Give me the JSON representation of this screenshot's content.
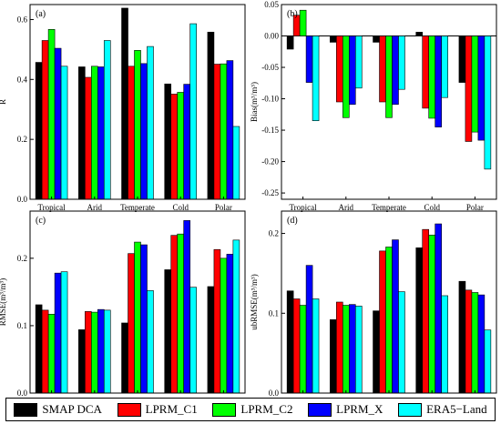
{
  "chart_data": [
    {
      "type": "bar",
      "panel_label": "(a)",
      "ylabel": "R",
      "ylim": [
        0,
        0.65
      ],
      "yticks": [
        0.0,
        0.2,
        0.4,
        0.6
      ],
      "ytick_labels": [
        "0.0",
        "0.2",
        "0.4",
        "0.6"
      ],
      "categories": [
        "Tropical",
        "Arid",
        "Temperate",
        "Cold",
        "Polar"
      ],
      "series": [
        {
          "name": "SMAP DCA",
          "values": [
            0.457,
            0.442,
            0.638,
            0.385,
            0.558
          ]
        },
        {
          "name": "LPRM_C1",
          "values": [
            0.53,
            0.407,
            0.444,
            0.351,
            0.451
          ]
        },
        {
          "name": "LPRM_C2",
          "values": [
            0.567,
            0.444,
            0.497,
            0.357,
            0.452
          ]
        },
        {
          "name": "LPRM_X",
          "values": [
            0.504,
            0.442,
            0.453,
            0.384,
            0.463
          ]
        },
        {
          "name": "ERA5-Land",
          "values": [
            0.444,
            0.53,
            0.51,
            0.586,
            0.243
          ]
        }
      ]
    },
    {
      "type": "bar",
      "panel_label": "(b)",
      "ylabel": "Bias(m³/m³)",
      "ylim": [
        -0.26,
        0.05
      ],
      "yticks": [
        0.05,
        0.0,
        -0.05,
        -0.1,
        -0.15,
        -0.2,
        -0.25
      ],
      "ytick_labels": [
        "0.05",
        "0.00",
        "-0.05",
        "-0.10",
        "-0.15",
        "-0.20",
        "-0.25"
      ],
      "categories": [
        "Tropical",
        "Arid",
        "Temperate",
        "Cold",
        "Polar"
      ],
      "series": [
        {
          "name": "SMAP DCA",
          "values": [
            -0.021,
            -0.01,
            -0.01,
            0.006,
            -0.074
          ]
        },
        {
          "name": "LPRM_C1",
          "values": [
            0.033,
            -0.105,
            -0.105,
            -0.115,
            -0.168
          ]
        },
        {
          "name": "LPRM_C2",
          "values": [
            0.041,
            -0.13,
            -0.13,
            -0.131,
            -0.153
          ]
        },
        {
          "name": "LPRM_X",
          "values": [
            -0.074,
            -0.109,
            -0.109,
            -0.145,
            -0.166
          ]
        },
        {
          "name": "ERA5-Land",
          "values": [
            -0.135,
            -0.083,
            -0.085,
            -0.098,
            -0.212
          ]
        }
      ]
    },
    {
      "type": "bar",
      "panel_label": "(c)",
      "ylabel": "RMSE(m³/m³)",
      "ylim": [
        0,
        0.27
      ],
      "yticks": [
        0.0,
        0.1,
        0.2
      ],
      "ytick_labels": [
        "0.0",
        "0.1",
        "0.2"
      ],
      "categories": [
        "Tropical",
        "Arid",
        "Temperate",
        "Cold",
        "Polar"
      ],
      "series": [
        {
          "name": "SMAP DCA",
          "values": [
            0.131,
            0.094,
            0.104,
            0.183,
            0.158
          ]
        },
        {
          "name": "LPRM_C1",
          "values": [
            0.123,
            0.121,
            0.207,
            0.234,
            0.213
          ]
        },
        {
          "name": "LPRM_C2",
          "values": [
            0.117,
            0.12,
            0.224,
            0.236,
            0.2
          ]
        },
        {
          "name": "LPRM_X",
          "values": [
            0.178,
            0.124,
            0.22,
            0.256,
            0.206
          ]
        },
        {
          "name": "ERA5-Land",
          "values": [
            0.18,
            0.123,
            0.152,
            0.157,
            0.227
          ]
        }
      ]
    },
    {
      "type": "bar",
      "panel_label": "(d)",
      "ylabel": "ubRMSE(m³/m³)",
      "ylim": [
        0,
        0.228
      ],
      "yticks": [
        0.0,
        0.1,
        0.2
      ],
      "ytick_labels": [
        "0.0",
        "0.1",
        "0.2"
      ],
      "categories": [
        "Tropical",
        "Arid",
        "Temperate",
        "Cold",
        "Polar"
      ],
      "series": [
        {
          "name": "SMAP DCA",
          "values": [
            0.128,
            0.092,
            0.103,
            0.182,
            0.14
          ]
        },
        {
          "name": "LPRM_C1",
          "values": [
            0.118,
            0.114,
            0.178,
            0.205,
            0.129
          ]
        },
        {
          "name": "LPRM_C2",
          "values": [
            0.11,
            0.11,
            0.183,
            0.198,
            0.126
          ]
        },
        {
          "name": "LPRM_X",
          "values": [
            0.16,
            0.111,
            0.192,
            0.212,
            0.123
          ]
        },
        {
          "name": "ERA5-Land",
          "values": [
            0.118,
            0.109,
            0.127,
            0.122,
            0.079
          ]
        }
      ]
    }
  ],
  "legend": [
    {
      "name": "SMAP DCA",
      "color": "#000000"
    },
    {
      "name": "LPRM_C1",
      "color": "#ff0000"
    },
    {
      "name": "LPRM_C2",
      "color": "#00ff00"
    },
    {
      "name": "LPRM_X",
      "color": "#0000ff"
    },
    {
      "name": "ERA5−Land",
      "color": "#00ffff"
    }
  ]
}
